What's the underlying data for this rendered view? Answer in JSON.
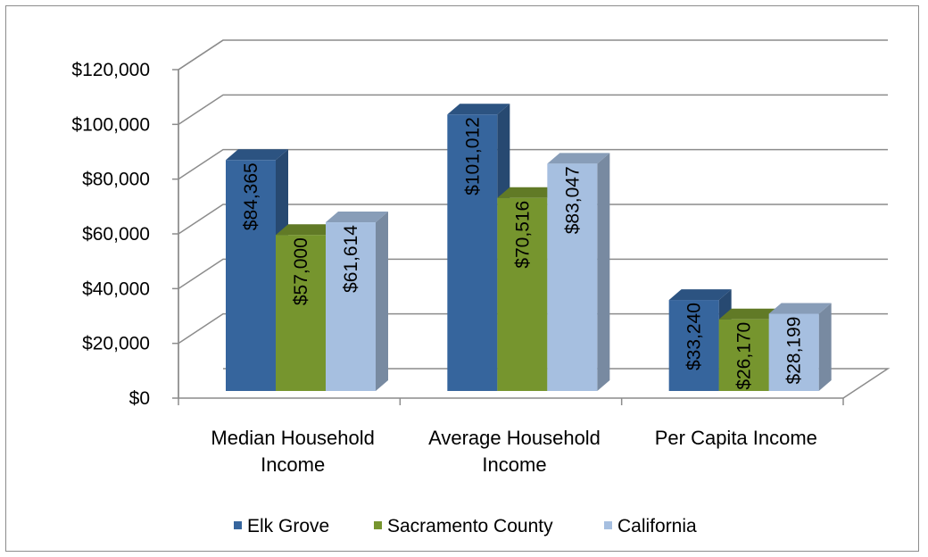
{
  "chart_data": {
    "type": "bar",
    "three_d": true,
    "categories": [
      "Median Household Income",
      "Average Household Income",
      "Per Capita Income"
    ],
    "category_lines": [
      [
        "Median Household",
        "Income"
      ],
      [
        "Average Household",
        "Income"
      ],
      [
        "Per Capita Income"
      ]
    ],
    "series": [
      {
        "name": "Elk Grove",
        "values": [
          84365,
          101012,
          33240
        ],
        "labels": [
          "$84,365",
          "$101,012",
          "$33,240"
        ],
        "color": "#36659d"
      },
      {
        "name": "Sacramento County",
        "values": [
          57000,
          70516,
          26170
        ],
        "labels": [
          "$57,000",
          "$70,516",
          "$26,170"
        ],
        "color": "#76952e"
      },
      {
        "name": "California",
        "values": [
          61614,
          83047,
          28199
        ],
        "labels": [
          "$61,614",
          "$83,047",
          "$28,199"
        ],
        "color": "#a6bfe0"
      }
    ],
    "y_ticks": [
      "$0",
      "$20,000",
      "$40,000",
      "$60,000",
      "$80,000",
      "$100,000",
      "$120,000"
    ],
    "ylim": [
      0,
      120000
    ],
    "grid": true,
    "legend": "bottom",
    "data_labels": "inside-rotated"
  }
}
